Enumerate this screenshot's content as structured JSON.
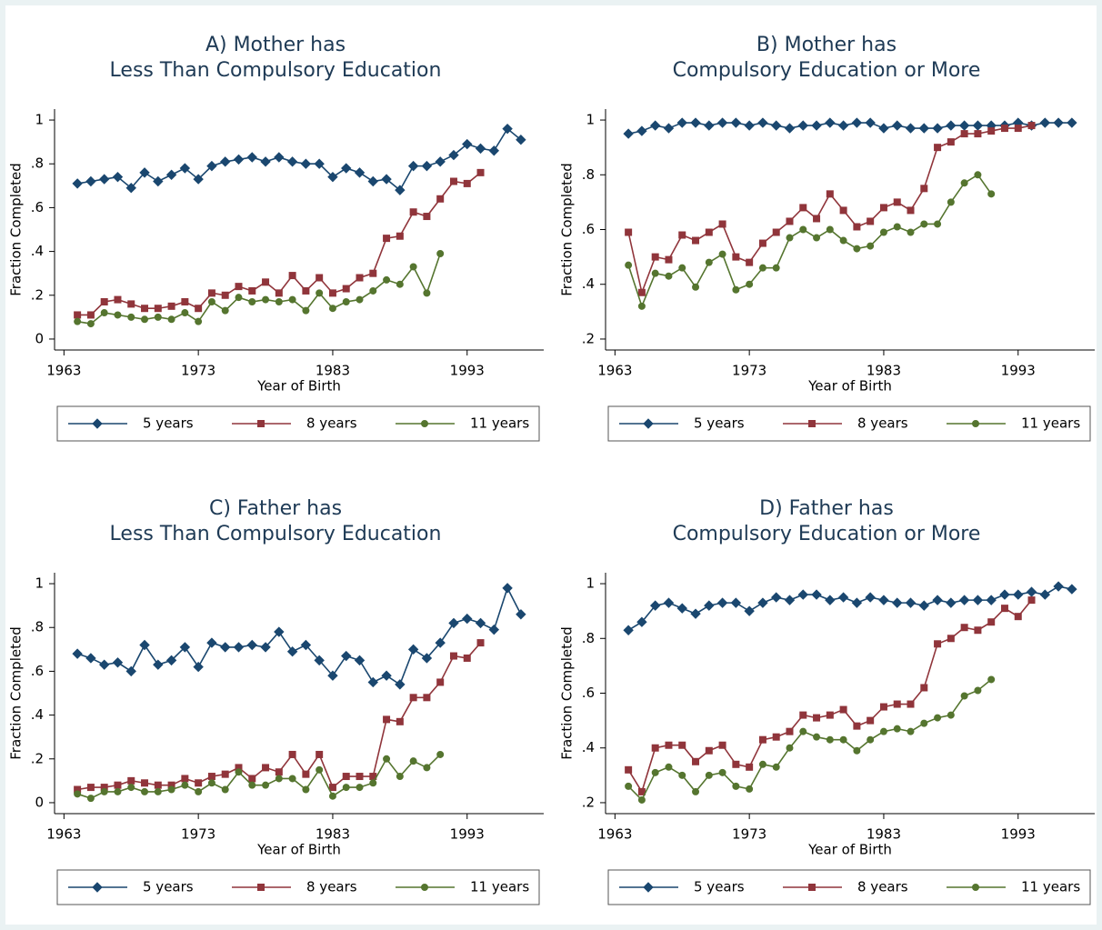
{
  "chart_data": [
    {
      "type": "line",
      "title": [
        "A) Mother has",
        "Less Than Compulsory Education"
      ],
      "xlabel": "Year of Birth",
      "ylabel": "Fraction Completed",
      "x": [
        1964,
        1965,
        1966,
        1967,
        1968,
        1969,
        1970,
        1971,
        1972,
        1973,
        1974,
        1975,
        1976,
        1977,
        1978,
        1979,
        1980,
        1981,
        1982,
        1983,
        1984,
        1985,
        1986,
        1987,
        1988,
        1989,
        1990,
        1991,
        1992,
        1993,
        1994,
        1995,
        1996,
        1997
      ],
      "xlim": [
        1962.3,
        1998.7
      ],
      "xticks": [
        1963,
        1973,
        1983,
        1993
      ],
      "ylim": [
        -0.05,
        1.05
      ],
      "yticks": [
        0,
        {
          "value": 0.2,
          "label": ".2"
        },
        {
          "value": 0.4,
          "label": ".4"
        },
        {
          "value": 0.6,
          "label": ".6"
        },
        {
          "value": 0.8,
          "label": ".8"
        },
        1
      ],
      "legend": "bottom",
      "series": [
        {
          "name": "5 years",
          "color": "#1a476f",
          "marker": "diamond",
          "values": [
            0.71,
            0.72,
            0.73,
            0.74,
            0.69,
            0.76,
            0.72,
            0.75,
            0.78,
            0.73,
            0.79,
            0.81,
            0.82,
            0.83,
            0.81,
            0.83,
            0.81,
            0.8,
            0.8,
            0.74,
            0.78,
            0.76,
            0.72,
            0.73,
            0.68,
            0.79,
            0.79,
            0.81,
            0.84,
            0.89,
            0.87,
            0.86,
            0.96,
            0.91
          ]
        },
        {
          "name": "8 years",
          "color": "#90353b",
          "marker": "square",
          "values": [
            0.11,
            0.11,
            0.17,
            0.18,
            0.16,
            0.14,
            0.14,
            0.15,
            0.17,
            0.14,
            0.21,
            0.2,
            0.24,
            0.22,
            0.26,
            0.21,
            0.29,
            0.22,
            0.28,
            0.21,
            0.23,
            0.28,
            0.3,
            0.46,
            0.47,
            0.58,
            0.56,
            0.64,
            0.72,
            0.71,
            0.76,
            null,
            null,
            null
          ]
        },
        {
          "name": "11 years",
          "color": "#55752f",
          "marker": "circle",
          "values": [
            0.08,
            0.07,
            0.12,
            0.11,
            0.1,
            0.09,
            0.1,
            0.09,
            0.12,
            0.08,
            0.17,
            0.13,
            0.19,
            0.17,
            0.18,
            0.17,
            0.18,
            0.13,
            0.21,
            0.14,
            0.17,
            0.18,
            0.22,
            0.27,
            0.25,
            0.33,
            0.21,
            0.39,
            null,
            null,
            null,
            null,
            null,
            null
          ]
        }
      ]
    },
    {
      "type": "line",
      "title": [
        "B) Mother has",
        "Compulsory Education or More"
      ],
      "xlabel": "Year of Birth",
      "ylabel": "Fraction Completed",
      "x": [
        1964,
        1965,
        1966,
        1967,
        1968,
        1969,
        1970,
        1971,
        1972,
        1973,
        1974,
        1975,
        1976,
        1977,
        1978,
        1979,
        1980,
        1981,
        1982,
        1983,
        1984,
        1985,
        1986,
        1987,
        1988,
        1989,
        1990,
        1991,
        1992,
        1993,
        1994,
        1995,
        1996,
        1997
      ],
      "xlim": [
        1962.3,
        1998.7
      ],
      "xticks": [
        1963,
        1973,
        1983,
        1993
      ],
      "ylim": [
        0.16,
        1.04
      ],
      "yticks": [
        {
          "value": 0.2,
          "label": ".2"
        },
        {
          "value": 0.4,
          "label": ".4"
        },
        {
          "value": 0.6,
          "label": ".6"
        },
        {
          "value": 0.8,
          "label": ".8"
        },
        1
      ],
      "legend": "bottom",
      "series": [
        {
          "name": "5 years",
          "color": "#1a476f",
          "marker": "diamond",
          "values": [
            0.95,
            0.96,
            0.98,
            0.97,
            0.99,
            0.99,
            0.98,
            0.99,
            0.99,
            0.98,
            0.99,
            0.98,
            0.97,
            0.98,
            0.98,
            0.99,
            0.98,
            0.99,
            0.99,
            0.97,
            0.98,
            0.97,
            0.97,
            0.97,
            0.98,
            0.98,
            0.98,
            0.98,
            0.98,
            0.99,
            0.98,
            0.99,
            0.99,
            0.99
          ]
        },
        {
          "name": "8 years",
          "color": "#90353b",
          "marker": "square",
          "values": [
            0.59,
            0.37,
            0.5,
            0.49,
            0.58,
            0.56,
            0.59,
            0.62,
            0.5,
            0.48,
            0.55,
            0.59,
            0.63,
            0.68,
            0.64,
            0.73,
            0.67,
            0.61,
            0.63,
            0.68,
            0.7,
            0.67,
            0.75,
            0.9,
            0.92,
            0.95,
            0.95,
            0.96,
            0.97,
            0.97,
            0.98,
            null,
            null,
            null
          ]
        },
        {
          "name": "11 years",
          "color": "#55752f",
          "marker": "circle",
          "values": [
            0.47,
            0.32,
            0.44,
            0.43,
            0.46,
            0.39,
            0.48,
            0.51,
            0.38,
            0.4,
            0.46,
            0.46,
            0.57,
            0.6,
            0.57,
            0.6,
            0.56,
            0.53,
            0.54,
            0.59,
            0.61,
            0.59,
            0.62,
            0.62,
            0.7,
            0.77,
            0.8,
            0.73,
            null,
            null,
            null,
            null,
            null,
            null
          ]
        }
      ]
    },
    {
      "type": "line",
      "title": [
        "C) Father has",
        "Less Than Compulsory Education"
      ],
      "xlabel": "Year of Birth",
      "ylabel": "Fraction Completed",
      "x": [
        1964,
        1965,
        1966,
        1967,
        1968,
        1969,
        1970,
        1971,
        1972,
        1973,
        1974,
        1975,
        1976,
        1977,
        1978,
        1979,
        1980,
        1981,
        1982,
        1983,
        1984,
        1985,
        1986,
        1987,
        1988,
        1989,
        1990,
        1991,
        1992,
        1993,
        1994,
        1995,
        1996,
        1997
      ],
      "xlim": [
        1962.3,
        1998.7
      ],
      "xticks": [
        1963,
        1973,
        1983,
        1993
      ],
      "ylim": [
        -0.05,
        1.05
      ],
      "yticks": [
        0,
        {
          "value": 0.2,
          "label": ".2"
        },
        {
          "value": 0.4,
          "label": ".4"
        },
        {
          "value": 0.6,
          "label": ".6"
        },
        {
          "value": 0.8,
          "label": ".8"
        },
        1
      ],
      "legend": "bottom",
      "series": [
        {
          "name": "5 years",
          "color": "#1a476f",
          "marker": "diamond",
          "values": [
            0.68,
            0.66,
            0.63,
            0.64,
            0.6,
            0.72,
            0.63,
            0.65,
            0.71,
            0.62,
            0.73,
            0.71,
            0.71,
            0.72,
            0.71,
            0.78,
            0.69,
            0.72,
            0.65,
            0.58,
            0.67,
            0.65,
            0.55,
            0.58,
            0.54,
            0.7,
            0.66,
            0.73,
            0.82,
            0.84,
            0.82,
            0.79,
            0.98,
            0.86
          ]
        },
        {
          "name": "8 years",
          "color": "#90353b",
          "marker": "square",
          "values": [
            0.06,
            0.07,
            0.07,
            0.08,
            0.1,
            0.09,
            0.08,
            0.08,
            0.11,
            0.09,
            0.12,
            0.13,
            0.16,
            0.11,
            0.16,
            0.14,
            0.22,
            0.13,
            0.22,
            0.07,
            0.12,
            0.12,
            0.12,
            0.38,
            0.37,
            0.48,
            0.48,
            0.55,
            0.67,
            0.66,
            0.73,
            null,
            null,
            null
          ]
        },
        {
          "name": "11 years",
          "color": "#55752f",
          "marker": "circle",
          "values": [
            0.04,
            0.02,
            0.05,
            0.05,
            0.07,
            0.05,
            0.05,
            0.06,
            0.08,
            0.05,
            0.09,
            0.06,
            0.14,
            0.08,
            0.08,
            0.11,
            0.11,
            0.06,
            0.15,
            0.03,
            0.07,
            0.07,
            0.09,
            0.2,
            0.12,
            0.19,
            0.16,
            0.22,
            null,
            null,
            null,
            null,
            null,
            null
          ]
        }
      ]
    },
    {
      "type": "line",
      "title": [
        "D) Father has",
        "Compulsory Education or More"
      ],
      "xlabel": "Year of Birth",
      "ylabel": "Fraction Completed",
      "x": [
        1964,
        1965,
        1966,
        1967,
        1968,
        1969,
        1970,
        1971,
        1972,
        1973,
        1974,
        1975,
        1976,
        1977,
        1978,
        1979,
        1980,
        1981,
        1982,
        1983,
        1984,
        1985,
        1986,
        1987,
        1988,
        1989,
        1990,
        1991,
        1992,
        1993,
        1994,
        1995,
        1996,
        1997
      ],
      "xlim": [
        1962.3,
        1998.7
      ],
      "xticks": [
        1963,
        1973,
        1983,
        1993
      ],
      "ylim": [
        0.16,
        1.04
      ],
      "yticks": [
        {
          "value": 0.2,
          "label": ".2"
        },
        {
          "value": 0.4,
          "label": ".4"
        },
        {
          "value": 0.6,
          "label": ".6"
        },
        {
          "value": 0.8,
          "label": ".8"
        },
        1
      ],
      "legend": "bottom",
      "series": [
        {
          "name": "5 years",
          "color": "#1a476f",
          "marker": "diamond",
          "values": [
            0.83,
            0.86,
            0.92,
            0.93,
            0.91,
            0.89,
            0.92,
            0.93,
            0.93,
            0.9,
            0.93,
            0.95,
            0.94,
            0.96,
            0.96,
            0.94,
            0.95,
            0.93,
            0.95,
            0.94,
            0.93,
            0.93,
            0.92,
            0.94,
            0.93,
            0.94,
            0.94,
            0.94,
            0.96,
            0.96,
            0.97,
            0.96,
            0.99,
            0.98
          ]
        },
        {
          "name": "8 years",
          "color": "#90353b",
          "marker": "square",
          "values": [
            0.32,
            0.24,
            0.4,
            0.41,
            0.41,
            0.35,
            0.39,
            0.41,
            0.34,
            0.33,
            0.43,
            0.44,
            0.46,
            0.52,
            0.51,
            0.52,
            0.54,
            0.48,
            0.5,
            0.55,
            0.56,
            0.56,
            0.62,
            0.78,
            0.8,
            0.84,
            0.83,
            0.86,
            0.91,
            0.88,
            0.94,
            null,
            null,
            null
          ]
        },
        {
          "name": "11 years",
          "color": "#55752f",
          "marker": "circle",
          "values": [
            0.26,
            0.21,
            0.31,
            0.33,
            0.3,
            0.24,
            0.3,
            0.31,
            0.26,
            0.25,
            0.34,
            0.33,
            0.4,
            0.46,
            0.44,
            0.43,
            0.43,
            0.39,
            0.43,
            0.46,
            0.47,
            0.46,
            0.49,
            0.51,
            0.52,
            0.59,
            0.61,
            0.65,
            null,
            null,
            null,
            null,
            null,
            null
          ]
        }
      ]
    }
  ]
}
